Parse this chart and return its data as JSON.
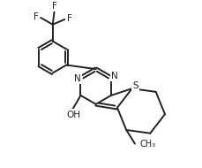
{
  "bg_color": "#ffffff",
  "line_color": "#222222",
  "line_width": 1.4,
  "font_size": 7.5,
  "figsize": [
    2.29,
    1.9
  ],
  "dpi": 100,
  "xlim": [
    0,
    2.29
  ],
  "ylim": [
    0,
    1.9
  ]
}
